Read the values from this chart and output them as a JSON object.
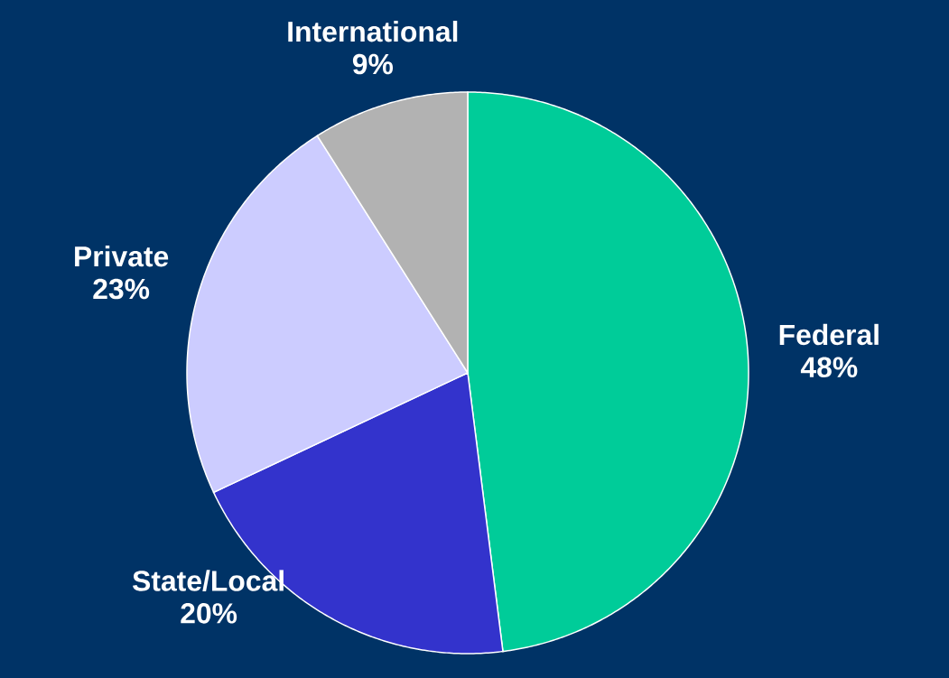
{
  "chart_data": {
    "type": "pie",
    "categories": [
      "Federal",
      "State/Local",
      "Private",
      "International"
    ],
    "values": [
      48,
      20,
      23,
      9
    ],
    "value_labels": [
      "48%",
      "20%",
      "23%",
      "9%"
    ],
    "colors": [
      "#00cc99",
      "#3333cc",
      "#ccccff",
      "#b2b2b2"
    ]
  }
}
